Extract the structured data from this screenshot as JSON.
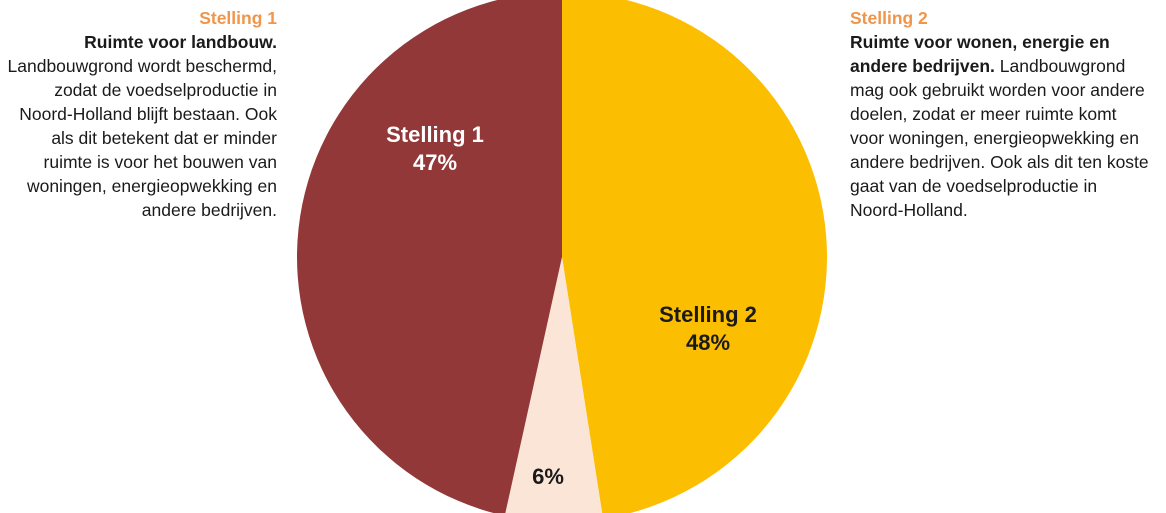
{
  "colors": {
    "stelling1": "#933838",
    "stelling2": "#fcbe00",
    "other": "#fbe5d6",
    "heading": "#f0954a"
  },
  "left_panel": {
    "heading": "Stelling 1",
    "bold": "Ruimte voor landbouw.",
    "text": " Landbouwgrond wordt beschermd, zodat de voedselproductie in Noord-Holland blijft bestaan. Ook als dit betekent dat er minder ruimte is voor het bouwen van woningen, energieopwekking en andere bedrijven."
  },
  "right_panel": {
    "heading": "Stelling 2",
    "bold": "Ruimte voor wonen, energie en andere bedrijven.",
    "text": " Landbouwgrond mag ook gebruikt worden voor andere doelen, zodat er meer ruimte komt voor woningen, energieopwekking en andere bedrijven. Ook als dit ten koste gaat van de voedselproductie in Noord-Holland."
  },
  "chart_data": {
    "type": "pie",
    "title": "",
    "slices": [
      {
        "name": "Stelling 1",
        "value": 47,
        "label_name": "Stelling 1",
        "label_value": "47%",
        "color": "#933838"
      },
      {
        "name": "Stelling 2",
        "value": 48,
        "label_name": "Stelling 2",
        "label_value": "48%",
        "color": "#fcbe00"
      },
      {
        "name": "",
        "value": 6,
        "label_name": "",
        "label_value": "6%",
        "color": "#fbe5d6"
      }
    ]
  }
}
